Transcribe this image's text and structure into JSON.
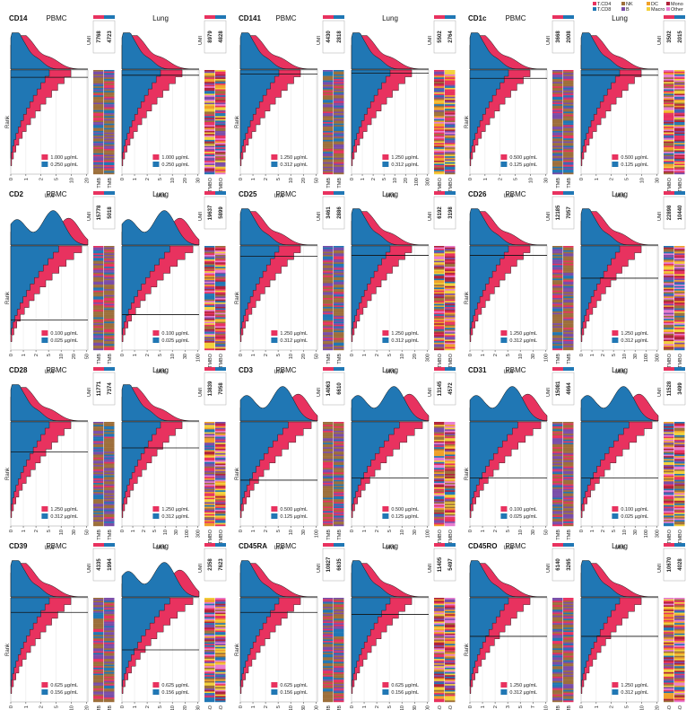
{
  "colors": {
    "high": "#e8325f",
    "low": "#2077b4",
    "line": "#111111",
    "grid": "#e6e6e6"
  },
  "legend": {
    "items": [
      {
        "label": "T.CD4",
        "color": "#e8325f"
      },
      {
        "label": "T.CD8",
        "color": "#2077b4"
      },
      {
        "label": "NK",
        "color": "#9d6f3b"
      },
      {
        "label": "B",
        "color": "#7a4da8"
      },
      {
        "label": "DC",
        "color": "#f0a12a"
      },
      {
        "label": "Macro",
        "color": "#f2d13c"
      },
      {
        "label": "Mono",
        "color": "#b0223a"
      },
      {
        "label": "Other",
        "color": "#e87dd0"
      }
    ]
  },
  "labels": {
    "rank": "Rank",
    "umi_axis": "UMI",
    "umi_col": "UMI",
    "tmb": "TMB",
    "tmbo": "TMBO"
  },
  "chart_data": [
    {
      "type": "area",
      "marker": "CD14",
      "tissue": "PBMC",
      "umi": [
        "7768",
        "4723"
      ],
      "legend": [
        "1.000 µg/mL",
        "0.250 µg/mL"
      ],
      "xticks": [
        "0",
        "1",
        "2",
        "5",
        "10",
        "20"
      ],
      "xmax": 20,
      "cutoff_frac": 0.07,
      "panel": "tmb"
    },
    {
      "type": "area",
      "marker": "",
      "tissue": "Lung",
      "umi": [
        "8979",
        "4828"
      ],
      "legend": [
        "1.000 µg/mL",
        "0.250 µg/mL"
      ],
      "xticks": [
        "0",
        "1",
        "2",
        "5",
        "10",
        "20",
        "30"
      ],
      "xmax": 30,
      "cutoff_frac": 0.05,
      "panel": "tmbo"
    },
    {
      "type": "area",
      "marker": "CD141",
      "tissue": "PBMC",
      "umi": [
        "4430",
        "2818"
      ],
      "legend": [
        "1.250 µg/mL",
        "0.312 µg/mL"
      ],
      "xticks": [
        "0",
        "1",
        "2",
        "5",
        "10",
        "20",
        "50"
      ],
      "xmax": 50,
      "cutoff_frac": 0.04,
      "panel": "tmb"
    },
    {
      "type": "area",
      "marker": "",
      "tissue": "Lung",
      "umi": [
        "5502",
        "2764"
      ],
      "legend": [
        "1.250 µg/mL",
        "0.312 µg/mL"
      ],
      "xticks": [
        "0",
        "1",
        "2",
        "5",
        "10",
        "20",
        "100",
        "300"
      ],
      "xmax": 300,
      "cutoff_frac": 0.03,
      "panel": "tmbo"
    },
    {
      "type": "area",
      "marker": "CD1c",
      "tissue": "PBMC",
      "umi": [
        "3668",
        "2008"
      ],
      "legend": [
        "0.500 µg/mL",
        "0.125 µg/mL"
      ],
      "xticks": [
        "0",
        "1",
        "2",
        "5",
        "10",
        "30"
      ],
      "xmax": 30,
      "cutoff_frac": 0.08,
      "panel": "tmb"
    },
    {
      "type": "area",
      "marker": "",
      "tissue": "Lung",
      "umi": [
        "3502",
        "2015"
      ],
      "legend": [
        "0.500 µg/mL",
        "0.125 µg/mL"
      ],
      "xticks": [
        "0",
        "1",
        "2",
        "5",
        "10",
        "30"
      ],
      "xmax": 30,
      "cutoff_frac": 0.05,
      "panel": "tmbo"
    },
    {
      "type": "area",
      "marker": "CD2",
      "tissue": "PBMC",
      "umi": [
        "15778",
        "5018"
      ],
      "legend": [
        "0.100 µg/mL",
        "0.025 µg/mL"
      ],
      "xticks": [
        "0",
        "1",
        "2",
        "5",
        "10",
        "20",
        "50"
      ],
      "xmax": 50,
      "cutoff_frac": 0.71,
      "panel": "tmb"
    },
    {
      "type": "area",
      "marker": "",
      "tissue": "Lung",
      "umi": [
        "19637",
        "5899"
      ],
      "legend": [
        "0.100 µg/mL",
        "0.025 µg/mL"
      ],
      "xticks": [
        "0",
        "1",
        "2",
        "5",
        "10",
        "30",
        "100"
      ],
      "xmax": 100,
      "cutoff_frac": 0.66,
      "panel": "tmbo"
    },
    {
      "type": "area",
      "marker": "CD25",
      "tissue": "PBMC",
      "umi": [
        "3461",
        "2886"
      ],
      "legend": [
        "1.250 µg/mL",
        "0.312 µg/mL"
      ],
      "xticks": [
        "0",
        "1",
        "2",
        "5",
        "10",
        "20",
        "50"
      ],
      "xmax": 50,
      "cutoff_frac": 0.1,
      "panel": "tmb"
    },
    {
      "type": "area",
      "marker": "",
      "tissue": "Lung",
      "umi": [
        "6192",
        "3198"
      ],
      "legend": [
        "1.250 µg/mL",
        "0.312 µg/mL"
      ],
      "xticks": [
        "0",
        "1",
        "2",
        "5",
        "10",
        "20",
        "300"
      ],
      "xmax": 300,
      "cutoff_frac": 0.09,
      "panel": "tmbo"
    },
    {
      "type": "area",
      "marker": "CD26",
      "tissue": "PBMC",
      "umi": [
        "12185",
        "7057"
      ],
      "legend": [
        "1.250 µg/mL",
        "0.312 µg/mL"
      ],
      "xticks": [
        "0",
        "1",
        "2",
        "5",
        "10",
        "30",
        "100"
      ],
      "xmax": 100,
      "cutoff_frac": 0.09,
      "panel": "tmb"
    },
    {
      "type": "area",
      "marker": "",
      "tissue": "Lung",
      "umi": [
        "22898",
        "10440"
      ],
      "legend": [
        "1.250 µg/mL",
        "0.312 µg/mL"
      ],
      "xticks": [
        "0",
        "1",
        "2",
        "5",
        "10",
        "30",
        "100",
        "300"
      ],
      "xmax": 300,
      "cutoff_frac": 0.31,
      "panel": "tmbo"
    },
    {
      "type": "area",
      "marker": "CD28",
      "tissue": "PBMC",
      "umi": [
        "11771",
        "7374"
      ],
      "legend": [
        "1.250 µg/mL",
        "0.312 µg/mL"
      ],
      "xticks": [
        "0",
        "1",
        "2",
        "5",
        "10",
        "30",
        "50"
      ],
      "xmax": 50,
      "cutoff_frac": 0.29,
      "panel": "tmb"
    },
    {
      "type": "area",
      "marker": "",
      "tissue": "Lung",
      "umi": [
        "13839",
        "7058"
      ],
      "legend": [
        "1.250 µg/mL",
        "0.312 µg/mL"
      ],
      "xticks": [
        "0",
        "1",
        "2",
        "5",
        "10",
        "30",
        "100",
        "300"
      ],
      "xmax": 300,
      "cutoff_frac": 0.25,
      "panel": "tmbo"
    },
    {
      "type": "area",
      "marker": "CD3",
      "tissue": "PBMC",
      "umi": [
        "14063",
        "6610"
      ],
      "legend": [
        "0.500 µg/mL",
        "0.125 µg/mL"
      ],
      "xticks": [
        "0",
        "1",
        "2",
        "5",
        "10",
        "30",
        "100"
      ],
      "xmax": 100,
      "cutoff_frac": 0.56,
      "panel": "tmb"
    },
    {
      "type": "area",
      "marker": "",
      "tissue": "Lung",
      "umi": [
        "13145",
        "4572"
      ],
      "legend": [
        "0.500 µg/mL",
        "0.125 µg/mL"
      ],
      "xticks": [
        "0",
        "1",
        "2",
        "5",
        "10",
        "30",
        "100"
      ],
      "xmax": 100,
      "cutoff_frac": 0.54,
      "panel": "tmbo"
    },
    {
      "type": "area",
      "marker": "CD31",
      "tissue": "PBMC",
      "umi": [
        "15081",
        "4664"
      ],
      "legend": [
        "0.100 µg/mL",
        "0.025 µg/mL"
      ],
      "xticks": [
        "0",
        "1",
        "2",
        "5",
        "10",
        "30",
        "50"
      ],
      "xmax": 50,
      "cutoff_frac": 0.54,
      "panel": "tmb"
    },
    {
      "type": "area",
      "marker": "",
      "tissue": "Lung",
      "umi": [
        "11528",
        "3499"
      ],
      "legend": [
        "0.100 µg/mL",
        "0.025 µg/mL"
      ],
      "xticks": [
        "0",
        "1",
        "2",
        "5",
        "10",
        "30",
        "100",
        "300"
      ],
      "xmax": 300,
      "cutoff_frac": 0.54,
      "panel": "tmbo"
    },
    {
      "type": "area",
      "marker": "CD39",
      "tissue": "PBMC",
      "umi": [
        "4335",
        "1994"
      ],
      "legend": [
        "0.625 µg/mL",
        "0.156 µg/mL"
      ],
      "xticks": [
        "0",
        "1",
        "2",
        "5",
        "10",
        "20"
      ],
      "xmax": 20,
      "cutoff_frac": 0.14,
      "panel": "tmb"
    },
    {
      "type": "area",
      "marker": "",
      "tissue": "Lung",
      "umi": [
        "2358",
        "7623"
      ],
      "legend": [
        "0.625 µg/mL",
        "0.156 µg/mL"
      ],
      "xticks": [
        "0",
        "1",
        "2",
        "5",
        "10",
        "20",
        "30"
      ],
      "xmax": 30,
      "cutoff_frac": 0.5,
      "panel": "tmbo"
    },
    {
      "type": "area",
      "marker": "CD45RA",
      "tissue": "PBMC",
      "umi": [
        "10827",
        "6635"
      ],
      "legend": [
        "0.625 µg/mL",
        "0.156 µg/mL"
      ],
      "xticks": [
        "0",
        "1",
        "2",
        "5",
        "10",
        "30",
        "100"
      ],
      "xmax": 100,
      "cutoff_frac": 0.14,
      "panel": "tmb"
    },
    {
      "type": "area",
      "marker": "",
      "tissue": "Lung",
      "umi": [
        "11405",
        "5497"
      ],
      "legend": [
        "0.625 µg/mL",
        "0.156 µg/mL"
      ],
      "xticks": [
        "0",
        "1",
        "2",
        "5",
        "10",
        "30",
        "100"
      ],
      "xmax": 100,
      "cutoff_frac": 0.16,
      "panel": "tmbo"
    },
    {
      "type": "area",
      "marker": "CD45RO",
      "tissue": "PBMC",
      "umi": [
        "6140",
        "3265"
      ],
      "legend": [
        "1.250 µg/mL",
        "0.312 µg/mL"
      ],
      "xticks": [
        "0",
        "1",
        "2",
        "3",
        "5",
        "7",
        "10"
      ],
      "xmax": 10,
      "cutoff_frac": 0.37,
      "panel": "tmb"
    },
    {
      "type": "area",
      "marker": "",
      "tissue": "Lung",
      "umi": [
        "10670",
        "4028"
      ],
      "legend": [
        "1.250 µg/mL",
        "0.312 µg/mL"
      ],
      "xticks": [
        "0",
        "1",
        "2",
        "5",
        "10",
        "20"
      ],
      "xmax": 20,
      "cutoff_frac": 0.37,
      "panel": "tmbo"
    }
  ]
}
